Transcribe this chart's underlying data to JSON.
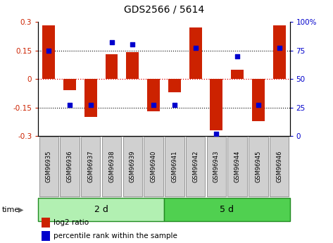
{
  "title": "GDS2566 / 5614",
  "samples": [
    "GSM96935",
    "GSM96936",
    "GSM96937",
    "GSM96938",
    "GSM96939",
    "GSM96940",
    "GSM96941",
    "GSM96942",
    "GSM96943",
    "GSM96944",
    "GSM96945",
    "GSM96946"
  ],
  "log2_ratio": [
    0.28,
    -0.06,
    -0.2,
    0.13,
    0.14,
    -0.17,
    -0.07,
    0.27,
    -0.27,
    0.05,
    -0.22,
    0.28
  ],
  "percentile_rank": [
    75,
    27,
    27,
    82,
    80,
    27,
    27,
    77,
    2,
    70,
    27,
    77
  ],
  "groups": [
    {
      "label": "2 d",
      "start": 0,
      "end": 6,
      "color": "#b2f0b2"
    },
    {
      "label": "5 d",
      "start": 6,
      "end": 12,
      "color": "#50d050"
    }
  ],
  "ylim": [
    -0.3,
    0.3
  ],
  "yticks_left": [
    -0.3,
    -0.15,
    0,
    0.15,
    0.3
  ],
  "yticks_right": [
    0,
    25,
    50,
    75,
    100
  ],
  "bar_color": "#cc2200",
  "dot_color": "#0000cc",
  "hline_zero_color": "#dd0000",
  "hline_other_color": "#000000",
  "background_color": "#ffffff",
  "time_label": "time",
  "legend_items": [
    "log2 ratio",
    "percentile rank within the sample"
  ],
  "legend_colors": [
    "#cc2200",
    "#0000cc"
  ],
  "sample_box_color": "#d0d0d0",
  "sample_box_edge": "#888888"
}
